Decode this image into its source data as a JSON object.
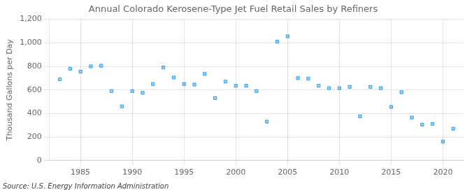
{
  "chart_data": {
    "type": "scatter",
    "title": "Annual Colorado Kerosene-Type Jet Fuel Retail Sales by Refiners",
    "ylabel": "Thousand Gallons per Day",
    "source": "Source: U.S. Energy Information Administration",
    "x": [
      1983,
      1984,
      1985,
      1986,
      1987,
      1988,
      1989,
      1990,
      1991,
      1992,
      1993,
      1994,
      1995,
      1996,
      1997,
      1998,
      1999,
      2000,
      2001,
      2002,
      2003,
      2004,
      2005,
      2006,
      2007,
      2008,
      2009,
      2010,
      2011,
      2012,
      2013,
      2014,
      2015,
      2016,
      2017,
      2018,
      2019,
      2020,
      2021
    ],
    "values": [
      690,
      780,
      755,
      800,
      805,
      590,
      460,
      590,
      575,
      650,
      790,
      705,
      650,
      645,
      735,
      530,
      670,
      635,
      635,
      590,
      330,
      1010,
      1055,
      700,
      695,
      635,
      615,
      615,
      625,
      375,
      625,
      615,
      455,
      580,
      365,
      305,
      310,
      160,
      270
    ],
    "marker": "square",
    "xlim": [
      1982,
      2022
    ],
    "xticks": [
      1985,
      1990,
      1995,
      2000,
      2005,
      2010,
      2015,
      2020
    ],
    "ylim": [
      0,
      1200
    ],
    "yticks": [
      0,
      200,
      400,
      600,
      800,
      {
        "value": 1000,
        "label": "1,000"
      },
      {
        "value": 1200,
        "label": "1,200"
      }
    ],
    "grid": true
  }
}
